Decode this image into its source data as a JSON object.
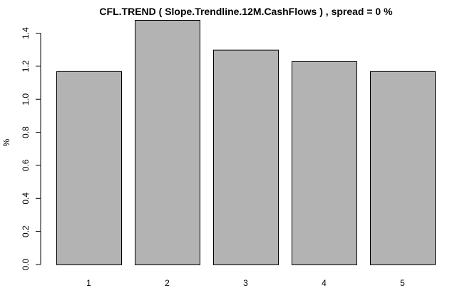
{
  "chart_data": {
    "type": "bar",
    "title": "CFL.TREND ( Slope.Trendline.12M.CashFlows ) , spread = 0 %",
    "xlabel": "",
    "ylabel": "%",
    "categories": [
      "1",
      "2",
      "3",
      "4",
      "5"
    ],
    "values": [
      1.17,
      1.48,
      1.3,
      1.23,
      1.17
    ],
    "ylim": [
      0,
      1.48
    ],
    "yticks": [
      0.0,
      0.2,
      0.4,
      0.6,
      0.8,
      1.0,
      1.2,
      1.4
    ],
    "ytick_labels": [
      "0.0",
      "0.2",
      "0.4",
      "0.6",
      "0.8",
      "1.0",
      "1.2",
      "1.4"
    ],
    "grid": false,
    "legend": "none",
    "bar_color": "#b3b3b3",
    "bar_border_color": "#000000"
  }
}
